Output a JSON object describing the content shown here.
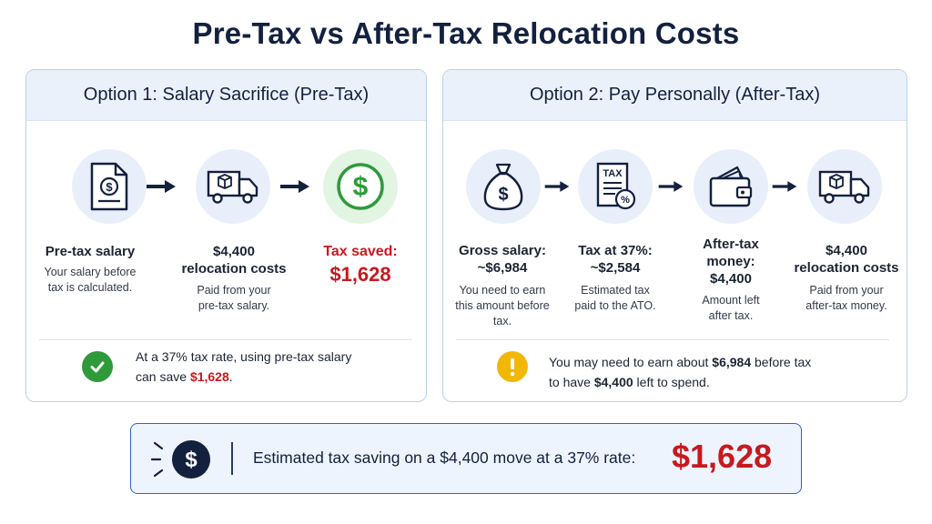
{
  "title": "Pre-Tax vs After-Tax Relocation Costs",
  "option1": {
    "heading": "Option 1: Salary Sacrifice (Pre-Tax)",
    "steps": [
      {
        "icon": "salary-document-icon",
        "title": "Pre-tax salary",
        "desc1": "Your salary before",
        "desc2": "tax is calculated."
      },
      {
        "icon": "moving-truck-icon",
        "title1": "$4,400",
        "title2": "relocation costs",
        "desc1": "Paid from your",
        "desc2": "pre-tax salary."
      },
      {
        "icon": "dollar-circle-icon",
        "title": "Tax saved:",
        "amount": "$1,628"
      }
    ],
    "note_pre": "At a 37% tax rate, using pre-tax salary",
    "note_mid": "can save ",
    "note_amount": "$1,628",
    "note_end": "."
  },
  "option2": {
    "heading": "Option 2: Pay Personally (After-Tax)",
    "steps": [
      {
        "icon": "money-bag-icon",
        "title1": "Gross salary:",
        "title2": "~$6,984",
        "desc1": "You need to earn",
        "desc2": "this amount before",
        "desc3": "tax."
      },
      {
        "icon": "tax-form-icon",
        "title1": "Tax at 37%:",
        "title2": "~$2,584",
        "desc1": "Estimated tax",
        "desc2": "paid to the ATO."
      },
      {
        "icon": "wallet-icon",
        "title1": "After-tax",
        "title2": "money:",
        "title3": "$4,400",
        "desc1": "Amount left",
        "desc2": "after tax."
      },
      {
        "icon": "moving-truck-icon",
        "title1": "$4,400",
        "title2": "relocation costs",
        "desc1": "Paid from your",
        "desc2": "after-tax money."
      }
    ],
    "note_l1_pre": "You may need to earn about ",
    "note_l1_amount": "$6,984",
    "note_l1_post": " before tax",
    "note_l2_pre": "to have ",
    "note_l2_amount": "$4,400",
    "note_l2_post": " left to spend."
  },
  "summary": {
    "text": "Estimated tax saving on a $4,400 move at a 37% rate:",
    "amount": "$1,628"
  },
  "colors": {
    "navy": "#13213f",
    "red": "#c8191f",
    "green": "#2e9a3a",
    "amber": "#f2b705",
    "blue_border": "#2f63c8"
  }
}
